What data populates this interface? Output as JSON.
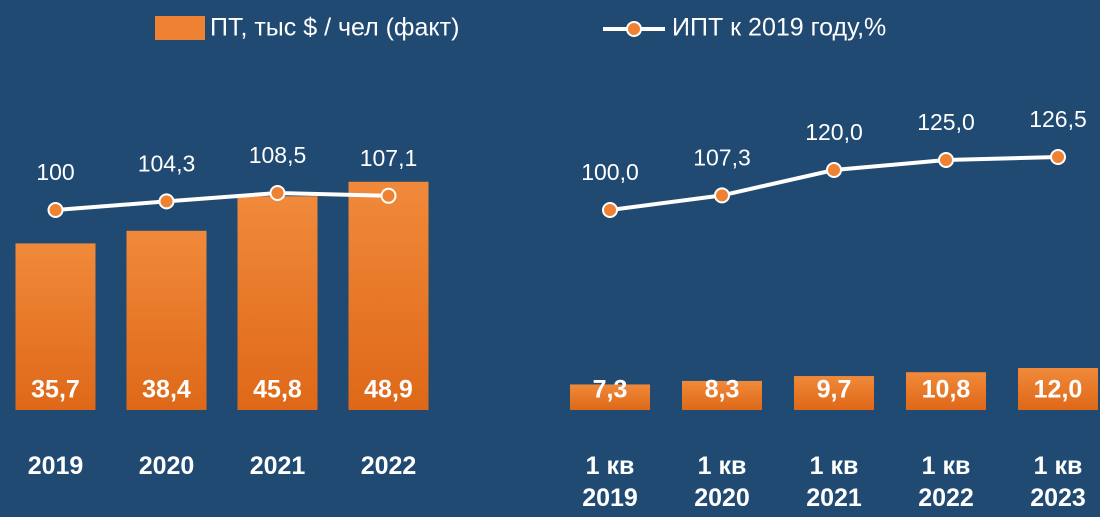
{
  "chart_data": [
    {
      "type": "combo",
      "categories": [
        "2019",
        "2020",
        "2021",
        "2022"
      ],
      "series": [
        {
          "name": "ПТ, тыс $ / чел (факт)",
          "type": "bar",
          "color": "#ee8132",
          "values": [
            35.7,
            38.4,
            45.8,
            48.9
          ],
          "value_labels": [
            "35,7",
            "38,4",
            "45,8",
            "48,9"
          ]
        },
        {
          "name": "ИПТ к 2019 году,%",
          "type": "line",
          "axis": "y2",
          "color": "#ffffff",
          "marker_color": "#ee8132",
          "values": [
            100,
            104.3,
            108.5,
            107.1
          ],
          "value_labels": [
            "100",
            "104,3",
            "108,5",
            "107,1"
          ]
        }
      ],
      "ylim": [
        0,
        60
      ],
      "y2lim": [
        0,
        140
      ]
    },
    {
      "type": "combo",
      "categories": [
        "1 кв 2019",
        "1 кв 2020",
        "1 кв 2021",
        "1 кв 2022",
        "1 кв 2023"
      ],
      "series": [
        {
          "type": "bar",
          "color": "#ee8132",
          "values": [
            7.3,
            8.3,
            9.7,
            10.8,
            12.0
          ],
          "value_labels": [
            "7,3",
            "8,3",
            "9,7",
            "10,8",
            "12,0"
          ]
        },
        {
          "type": "line",
          "axis": "y2",
          "color": "#ffffff",
          "marker_color": "#ee8132",
          "values": [
            100.0,
            107.3,
            120.0,
            125.0,
            126.5
          ],
          "value_labels": [
            "100,0",
            "107,3",
            "120,0",
            "125,0",
            "126,5"
          ]
        }
      ],
      "ylim": [
        0,
        80
      ],
      "y2lim": [
        0,
        140
      ]
    }
  ]
}
